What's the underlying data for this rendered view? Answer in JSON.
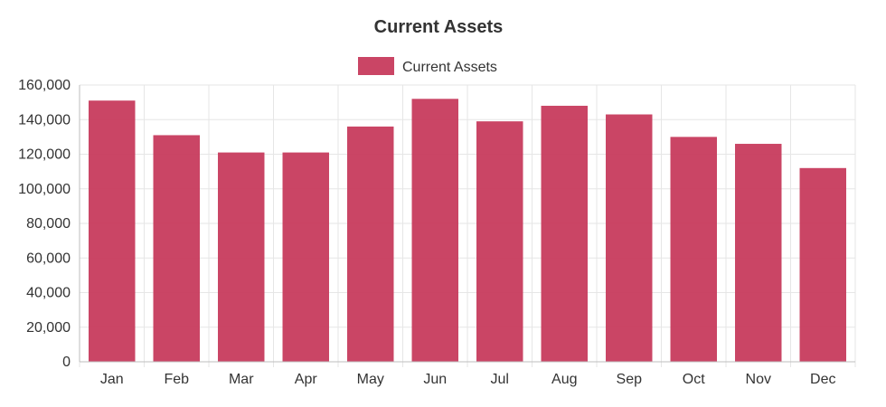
{
  "chart_data": {
    "type": "bar",
    "title": "Current Assets",
    "categories": [
      "Jan",
      "Feb",
      "Mar",
      "Apr",
      "May",
      "Jun",
      "Jul",
      "Aug",
      "Sep",
      "Oct",
      "Nov",
      "Dec"
    ],
    "series": [
      {
        "name": "Current Assets",
        "color": "#c73b5d",
        "values": [
          151000,
          131000,
          121000,
          121000,
          136000,
          152000,
          139000,
          148000,
          143000,
          130000,
          126000,
          112000
        ]
      }
    ],
    "y_ticks": [
      "0",
      "20,000",
      "40,000",
      "60,000",
      "80,000",
      "100,000",
      "120,000",
      "140,000",
      "160,000"
    ],
    "ylim": [
      0,
      160000
    ],
    "grid": true,
    "legend_position": "top-center"
  }
}
